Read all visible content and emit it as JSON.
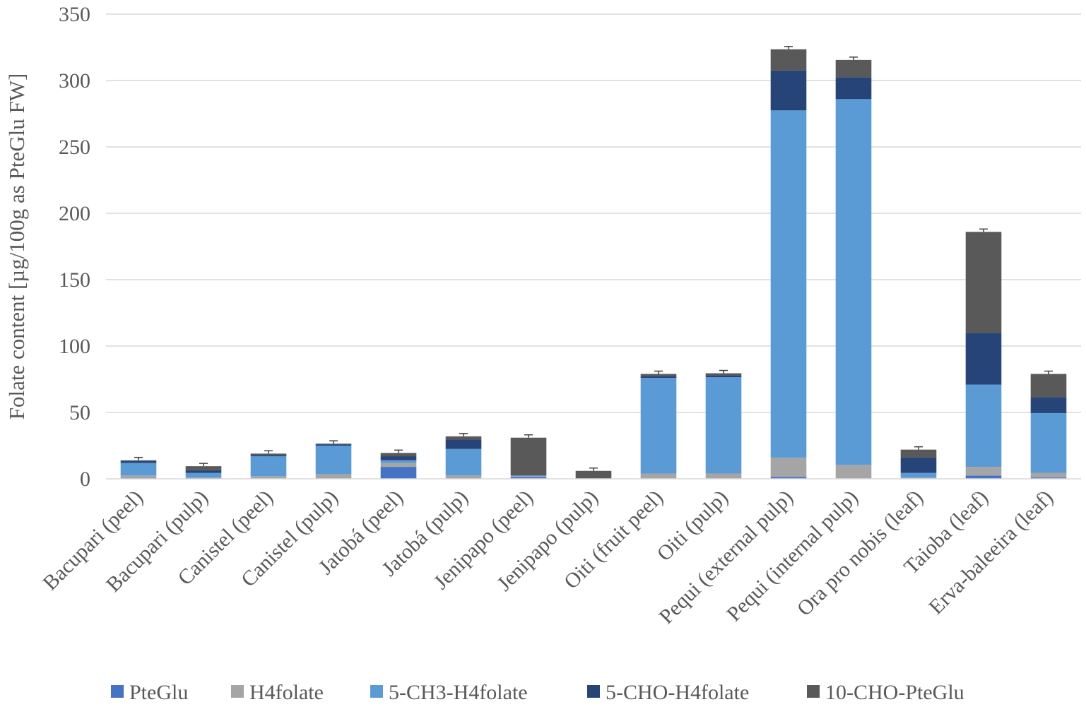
{
  "chart_data": {
    "type": "bar",
    "stacked": true,
    "ylabel": "Folate content [µg/100g as PteGlu FW]",
    "ylim": [
      0,
      350
    ],
    "yticks": [
      0,
      50,
      100,
      150,
      200,
      250,
      300,
      350
    ],
    "grid": true,
    "legend_position": "bottom",
    "categories": [
      "Bacupari (peel)",
      "Bacupari (pulp)",
      "Canistel (peel)",
      "Canistel (pulp)",
      "Jatobá (peel)",
      "Jatobá (pulp)",
      "Jenipapo (peel)",
      "Jenipapo (pulp)",
      "Oiti (fruit peel)",
      "Oiti (pulp)",
      "Pequi (external pulp)",
      "Pequi (internal pulp)",
      "Ora pro nobis (leaf)",
      "Taioba (leaf)",
      "Erva-baleeira (leaf)"
    ],
    "series": [
      {
        "name": "PteGlu",
        "color": "#4472c4",
        "values": [
          0.5,
          0.5,
          0,
          0,
          9,
          0,
          1.5,
          0,
          0,
          0,
          1.5,
          0,
          0,
          2.5,
          1
        ]
      },
      {
        "name": "H4folate",
        "color": "#a5a5a5",
        "values": [
          2,
          0.5,
          2,
          3.5,
          3,
          2.5,
          0.5,
          0,
          4,
          4,
          14.5,
          10.5,
          1,
          6.5,
          3.5
        ]
      },
      {
        "name": "5-CH3-H4folate",
        "color": "#5b9bd5",
        "values": [
          9.5,
          3.5,
          15,
          21.5,
          2,
          20,
          0.5,
          0,
          72,
          72.5,
          261.5,
          275.5,
          3.5,
          62,
          45
        ]
      },
      {
        "name": "5-CHO-H4folate",
        "color": "#264478",
        "values": [
          1.5,
          2,
          1,
          1,
          3,
          7,
          0,
          0,
          1.5,
          1.5,
          30,
          16.5,
          11.5,
          39,
          12
        ]
      },
      {
        "name": "10-CHO-PteGlu",
        "color": "#595959",
        "values": [
          0.5,
          3,
          1,
          0.5,
          2.5,
          2.5,
          28.5,
          6,
          1.5,
          1.5,
          16,
          13,
          6,
          76,
          17.5
        ]
      }
    ]
  }
}
